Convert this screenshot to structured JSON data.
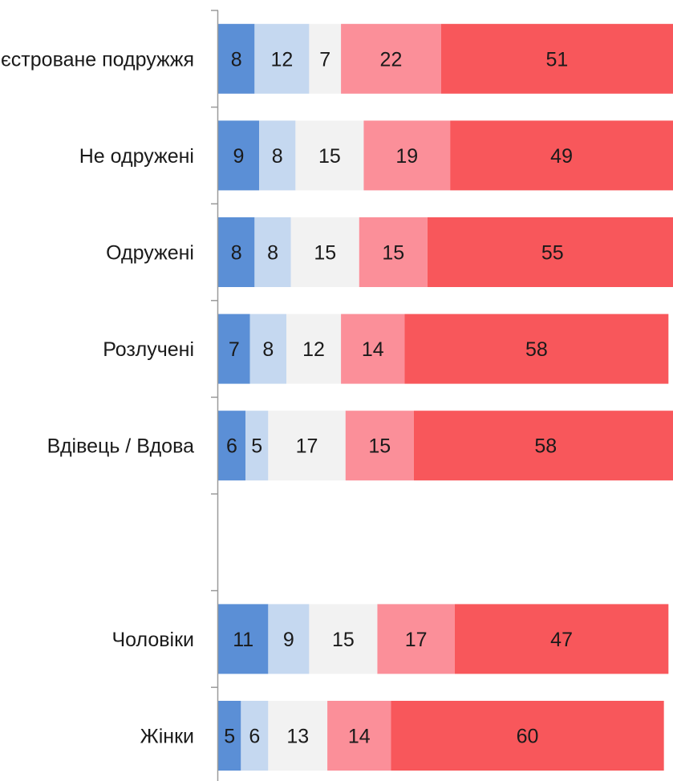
{
  "chart_data": {
    "type": "bar",
    "orientation": "horizontal",
    "stacked": true,
    "percent_scale": true,
    "categories": [
      "Незареєстроване подружжя",
      "Не одружені",
      "Одружені",
      "Розлучені",
      "Вдівець / Вдова",
      "",
      "Чоловіки",
      "Жінки"
    ],
    "series": [
      {
        "color": "#5b8fd6",
        "values": [
          8,
          9,
          8,
          7,
          6,
          null,
          11,
          5
        ]
      },
      {
        "color": "#c5d8f0",
        "values": [
          12,
          8,
          8,
          8,
          5,
          null,
          9,
          6
        ]
      },
      {
        "color": "#f2f2f2",
        "values": [
          7,
          15,
          15,
          12,
          17,
          null,
          15,
          13
        ]
      },
      {
        "color": "#fb8f99",
        "values": [
          22,
          19,
          15,
          14,
          15,
          null,
          17,
          14
        ]
      },
      {
        "color": "#f8575b",
        "values": [
          51,
          49,
          55,
          58,
          58,
          null,
          47,
          60
        ]
      }
    ],
    "legend": "none",
    "grid": false
  }
}
